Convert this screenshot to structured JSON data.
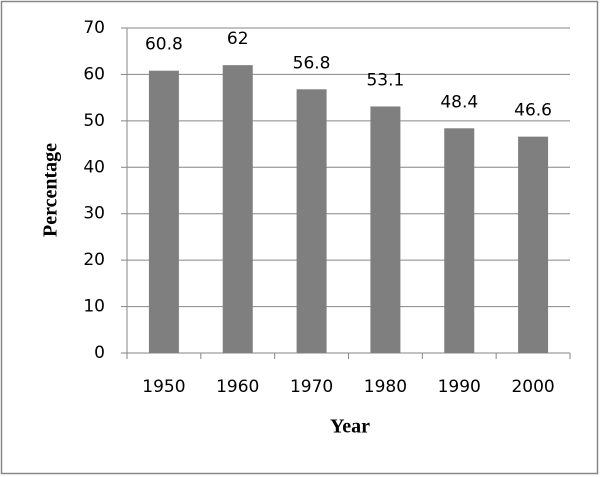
{
  "chart_data": {
    "type": "bar",
    "x_label": "Year",
    "y_label": "Percentage",
    "categories": [
      "1950",
      "1960",
      "1970",
      "1980",
      "1990",
      "2000"
    ],
    "values": [
      60.8,
      62,
      56.8,
      53.1,
      48.4,
      46.6
    ],
    "color": "#7f7f7f",
    "ylim": [
      0,
      70
    ],
    "yticks": [
      0,
      10,
      20,
      30,
      40,
      50,
      60,
      70
    ],
    "grid": true
  }
}
